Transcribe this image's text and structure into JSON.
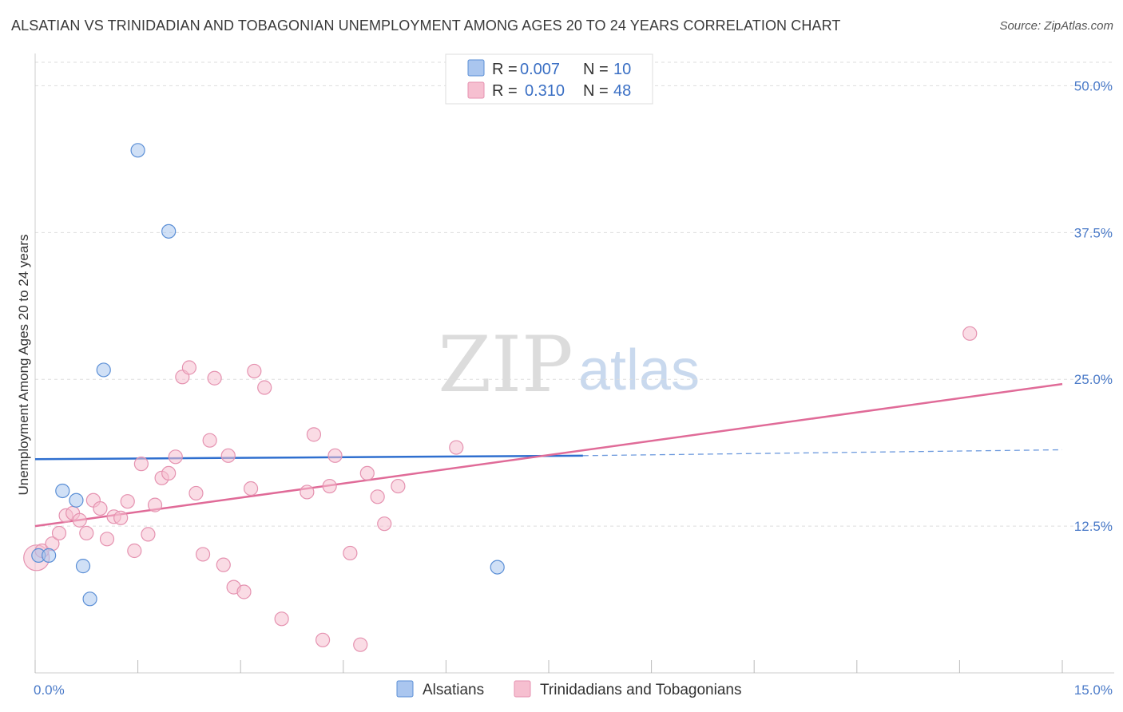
{
  "title": "ALSATIAN VS TRINIDADIAN AND TOBAGONIAN UNEMPLOYMENT AMONG AGES 20 TO 24 YEARS CORRELATION CHART",
  "source": "Source: ZipAtlas.com",
  "watermark": {
    "zip": "ZIP",
    "atlas": "atlas"
  },
  "colors": {
    "blue_fill": "#aac6ef",
    "blue_stroke": "#5b8fd6",
    "blue_line": "#2f6fcf",
    "pink_fill": "#f6bfd0",
    "pink_stroke": "#e592b0",
    "pink_line": "#e06b98",
    "grid": "#dddddd",
    "tick_text": "#4a7ac8"
  },
  "legend": {
    "rows": [
      {
        "r_label": "R =",
        "r_value": "0.007",
        "n_label": "N =",
        "n_value": "10"
      },
      {
        "r_label": "R =",
        "r_value": "0.310",
        "n_label": "N =",
        "n_value": "48"
      }
    ]
  },
  "chart_data": {
    "type": "scatter",
    "title": "ALSATIAN VS TRINIDADIAN AND TOBAGONIAN UNEMPLOYMENT AMONG AGES 20 TO 24 YEARS CORRELATION CHART",
    "xlabel": "",
    "ylabel": "Unemployment Among Ages 20 to 24 years",
    "xlim": [
      0,
      15
    ],
    "ylim": [
      0,
      52
    ],
    "x_tick_labels": [
      {
        "value": 0,
        "label": "0.0%"
      },
      {
        "value": 15,
        "label": "15.0%"
      }
    ],
    "x_minor_ticks": [
      0,
      1.5,
      3,
      4.5,
      6,
      7.5,
      9,
      10.5,
      12,
      13.5,
      15
    ],
    "y_ticks": [
      {
        "value": 12.5,
        "label": "12.5%"
      },
      {
        "value": 25,
        "label": "25.0%"
      },
      {
        "value": 37.5,
        "label": "37.5%"
      },
      {
        "value": 50,
        "label": "50.0%"
      }
    ],
    "grid": "horizontal-dashed",
    "legend_position": "top-center",
    "series": [
      {
        "name": "Alsatians",
        "color": "#aac6ef",
        "points": [
          [
            0.05,
            10.0
          ],
          [
            0.2,
            10.0
          ],
          [
            0.4,
            15.5
          ],
          [
            0.6,
            14.7
          ],
          [
            0.7,
            9.1
          ],
          [
            0.8,
            6.3
          ],
          [
            1.0,
            25.8
          ],
          [
            1.5,
            44.5
          ],
          [
            1.95,
            37.6
          ],
          [
            6.75,
            9.0
          ]
        ],
        "trend": {
          "x0": 0,
          "y0": 18.2,
          "x1": 8.0,
          "y1": 18.5,
          "dash_to_x": 15,
          "dash_to_y": 19.0
        }
      },
      {
        "name": "Trinidadians and Tobagonians",
        "color": "#f6bfd0",
        "points": [
          [
            0.02,
            9.8
          ],
          [
            0.1,
            10.4
          ],
          [
            0.25,
            11.0
          ],
          [
            0.35,
            11.9
          ],
          [
            0.45,
            13.4
          ],
          [
            0.55,
            13.6
          ],
          [
            0.65,
            13.0
          ],
          [
            0.75,
            11.9
          ],
          [
            0.85,
            14.7
          ],
          [
            0.95,
            14.0
          ],
          [
            1.05,
            11.4
          ],
          [
            1.15,
            13.3
          ],
          [
            1.25,
            13.2
          ],
          [
            1.35,
            14.6
          ],
          [
            1.45,
            10.4
          ],
          [
            1.55,
            17.8
          ],
          [
            1.65,
            11.8
          ],
          [
            1.75,
            14.3
          ],
          [
            1.85,
            16.6
          ],
          [
            1.95,
            17.0
          ],
          [
            2.05,
            18.4
          ],
          [
            2.15,
            25.2
          ],
          [
            2.25,
            26.0
          ],
          [
            2.35,
            15.3
          ],
          [
            2.45,
            10.1
          ],
          [
            2.55,
            19.8
          ],
          [
            2.62,
            25.1
          ],
          [
            2.75,
            9.2
          ],
          [
            2.82,
            18.5
          ],
          [
            2.9,
            7.3
          ],
          [
            3.05,
            6.9
          ],
          [
            3.15,
            15.7
          ],
          [
            3.2,
            25.7
          ],
          [
            3.35,
            24.3
          ],
          [
            3.6,
            4.6
          ],
          [
            3.97,
            15.4
          ],
          [
            4.07,
            20.3
          ],
          [
            4.2,
            2.8
          ],
          [
            4.3,
            15.9
          ],
          [
            4.38,
            18.5
          ],
          [
            4.6,
            10.2
          ],
          [
            4.75,
            2.4
          ],
          [
            4.85,
            17.0
          ],
          [
            5.0,
            15.0
          ],
          [
            5.1,
            12.7
          ],
          [
            5.3,
            15.9
          ],
          [
            6.15,
            19.2
          ],
          [
            13.65,
            28.9
          ]
        ],
        "trend": {
          "x0": 0,
          "y0": 12.5,
          "x1": 15,
          "y1": 24.6
        }
      }
    ]
  }
}
